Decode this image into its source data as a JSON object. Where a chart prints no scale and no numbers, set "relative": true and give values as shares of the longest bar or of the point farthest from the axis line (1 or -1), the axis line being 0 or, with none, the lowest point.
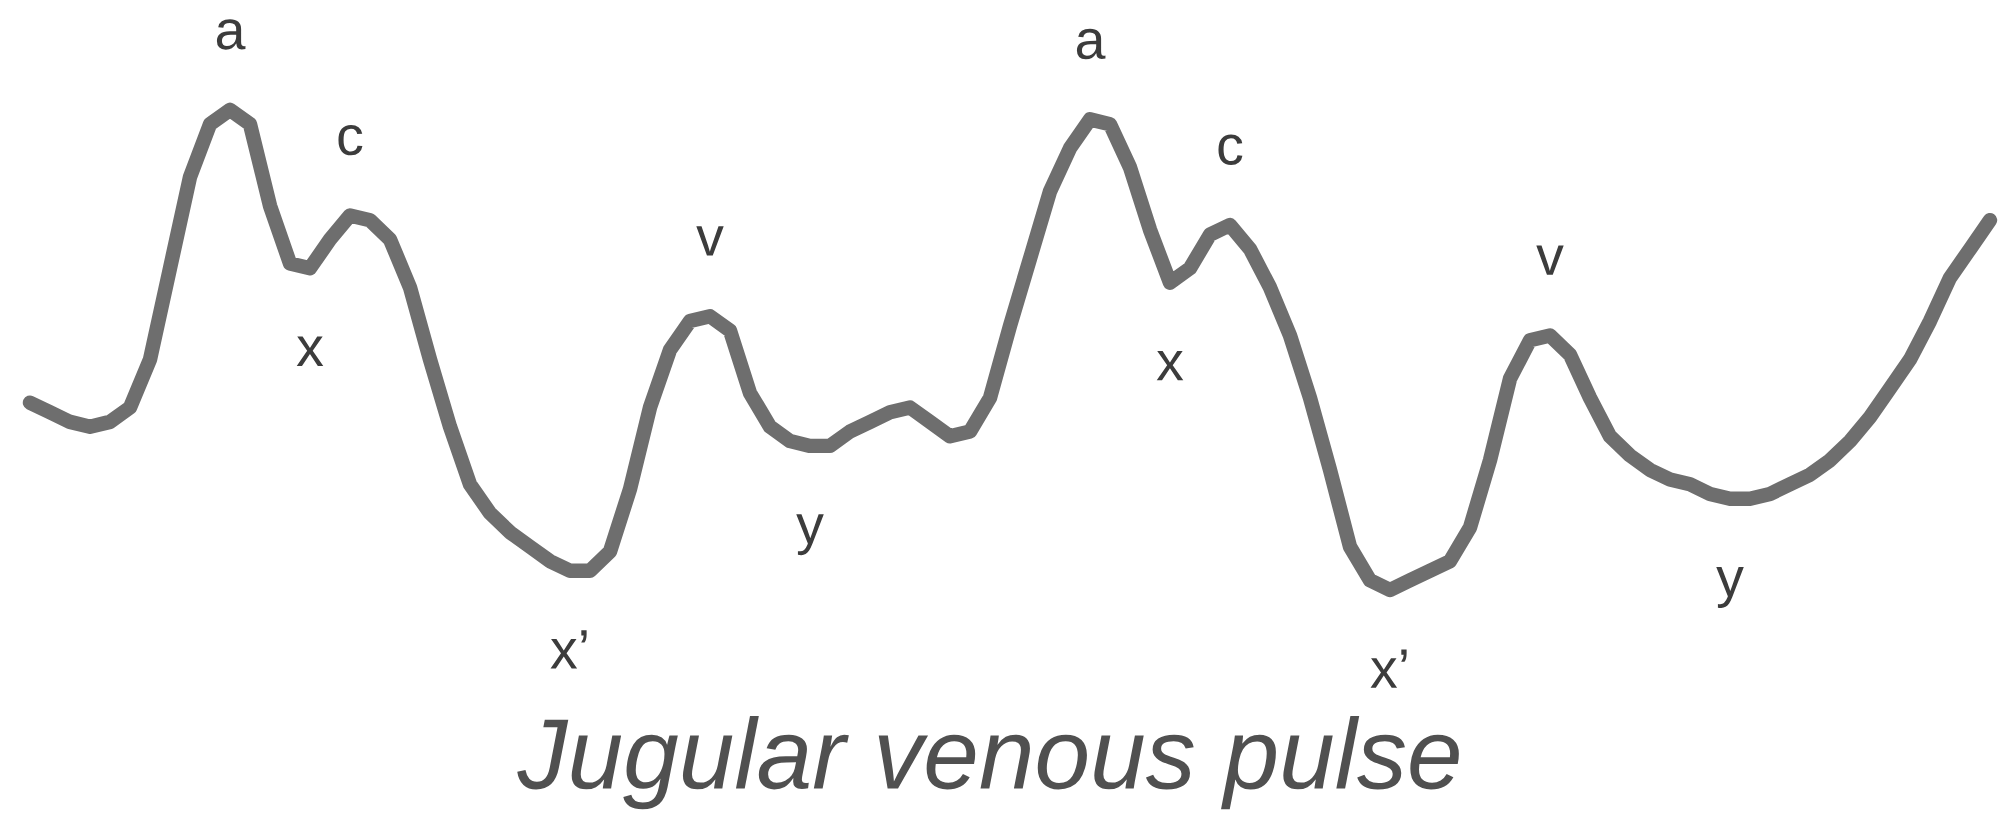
{
  "chart_data": {
    "type": "line",
    "title": "Jugular venous pulse",
    "relative": true,
    "categories": [
      null,
      null,
      null,
      null,
      null,
      null,
      null,
      null,
      null,
      null,
      null,
      null,
      null,
      null,
      null,
      null,
      null,
      null,
      null,
      null,
      null,
      null,
      null,
      null,
      null,
      null,
      null,
      null,
      null,
      null,
      null,
      null,
      null,
      null,
      null,
      null,
      null,
      null,
      null,
      null,
      null,
      null,
      null,
      null,
      null,
      null,
      null,
      null,
      null,
      null,
      null,
      null,
      null,
      null,
      null,
      null,
      null,
      null,
      null,
      null,
      null,
      null,
      null,
      null,
      null,
      null,
      null,
      null,
      null,
      null,
      null,
      null,
      null,
      null,
      null,
      null,
      null,
      null,
      null,
      null,
      null,
      null,
      null,
      null,
      null,
      null,
      null,
      null,
      null,
      null,
      null,
      null,
      null,
      null,
      null,
      null,
      null,
      null,
      null
    ],
    "series": [
      {
        "color": "#6e6e6e",
        "values": [
          0.39,
          0.37,
          0.35,
          0.34,
          0.35,
          0.38,
          0.48,
          0.67,
          0.86,
          0.97,
          1.0,
          0.97,
          0.8,
          0.68,
          0.67,
          0.73,
          0.78,
          0.77,
          0.73,
          0.63,
          0.48,
          0.34,
          0.22,
          0.16,
          0.12,
          0.09,
          0.06,
          0.04,
          0.04,
          0.08,
          0.21,
          0.38,
          0.5,
          0.56,
          0.57,
          0.54,
          0.41,
          0.34,
          0.31,
          0.3,
          0.3,
          0.33,
          0.35,
          0.37,
          0.38,
          0.35,
          0.32,
          0.33,
          0.4,
          0.55,
          0.69,
          0.83,
          0.92,
          0.98,
          0.97,
          0.88,
          0.75,
          0.64,
          0.67,
          0.74,
          0.76,
          0.71,
          0.63,
          0.53,
          0.4,
          0.25,
          0.09,
          0.02,
          0.0,
          0.02,
          0.04,
          0.06,
          0.13,
          0.27,
          0.44,
          0.52,
          0.53,
          0.49,
          0.4,
          0.32,
          0.28,
          0.25,
          0.23,
          0.22,
          0.2,
          0.19,
          0.19,
          0.2,
          0.22,
          0.24,
          0.27,
          0.31,
          0.36,
          0.42,
          0.48,
          0.56,
          0.65,
          0.71,
          0.77
        ]
      }
    ],
    "annotations": [
      {
        "text": "a",
        "y": 1.0
      },
      {
        "text": "x",
        "y": 0.67
      },
      {
        "text": "c",
        "y": 0.78
      },
      {
        "text": "x’",
        "y": 0.04
      },
      {
        "text": "v",
        "y": 0.57
      },
      {
        "text": "y",
        "y": 0.3
      },
      {
        "text": "a",
        "y": 0.98
      },
      {
        "text": "x",
        "y": 0.64
      },
      {
        "text": "c",
        "y": 0.76
      },
      {
        "text": "x’",
        "y": 0.0
      },
      {
        "text": "v",
        "y": 0.53
      },
      {
        "text": "y",
        "y": 0.19
      }
    ]
  }
}
